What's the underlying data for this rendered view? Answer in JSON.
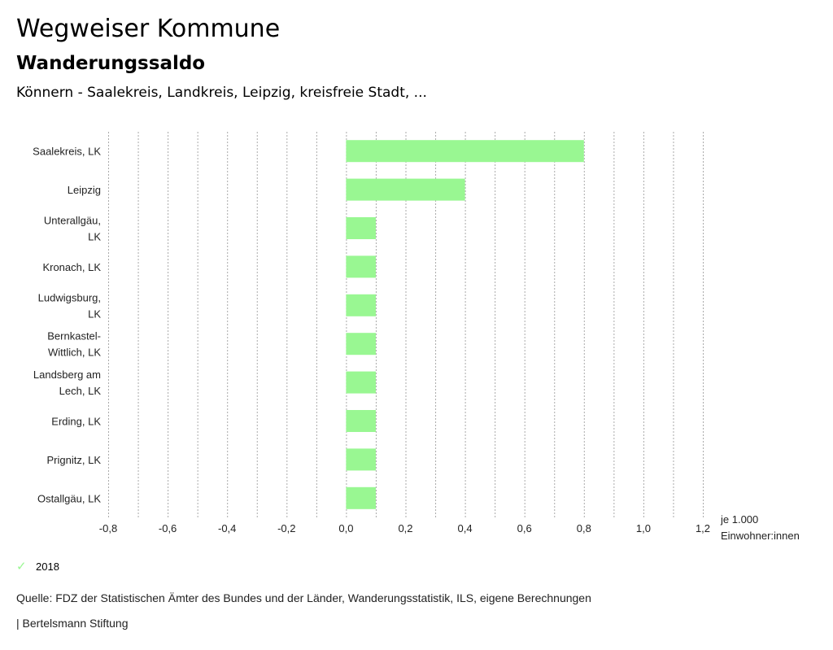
{
  "header": {
    "title": "Wegweiser Kommune",
    "subtitle": "Wanderungssaldo",
    "location": "Könnern - Saalekreis, Landkreis, Leipzig, kreisfreie Stadt, ..."
  },
  "colors": {
    "bar": "#99f792",
    "grid": "#aaaaaa"
  },
  "chart_data": {
    "type": "bar",
    "orientation": "horizontal",
    "categories": [
      [
        "Saalekreis, LK"
      ],
      [
        "Leipzig"
      ],
      [
        "Unterallgäu,",
        "LK"
      ],
      [
        "Kronach, LK"
      ],
      [
        "Ludwigsburg,",
        "LK"
      ],
      [
        "Bernkastel-",
        "Wittlich, LK"
      ],
      [
        "Landsberg am",
        "Lech, LK"
      ],
      [
        "Erding, LK"
      ],
      [
        "Prignitz, LK"
      ],
      [
        "Ostallgäu, LK"
      ]
    ],
    "series": [
      {
        "name": "2018",
        "values": [
          0.8,
          0.4,
          0.1,
          0.1,
          0.1,
          0.1,
          0.1,
          0.1,
          0.1,
          0.1
        ]
      }
    ],
    "xlim": [
      -0.8,
      1.2
    ],
    "xticks": [
      -0.8,
      -0.6,
      -0.4,
      -0.2,
      0.0,
      0.2,
      0.4,
      0.6,
      0.8,
      1.0,
      1.2
    ],
    "xtick_labels": [
      "-0,8",
      "-0,6",
      "-0,4",
      "-0,2",
      "0,0",
      "0,2",
      "0,4",
      "0,6",
      "0,8",
      "1,0",
      "1,2"
    ],
    "grid_step": 0.1,
    "unit_label": [
      "je 1.000",
      "Einwohner:innen"
    ],
    "grid": true,
    "legend_position": "bottom-left"
  },
  "legend": {
    "label": "2018",
    "icon": "check-icon"
  },
  "footer": {
    "source": "Quelle: FDZ der Statistischen Ämter des Bundes und der Länder, Wanderungsstatistik, ILS, eigene Berechnungen",
    "credit": "| Bertelsmann Stiftung"
  }
}
